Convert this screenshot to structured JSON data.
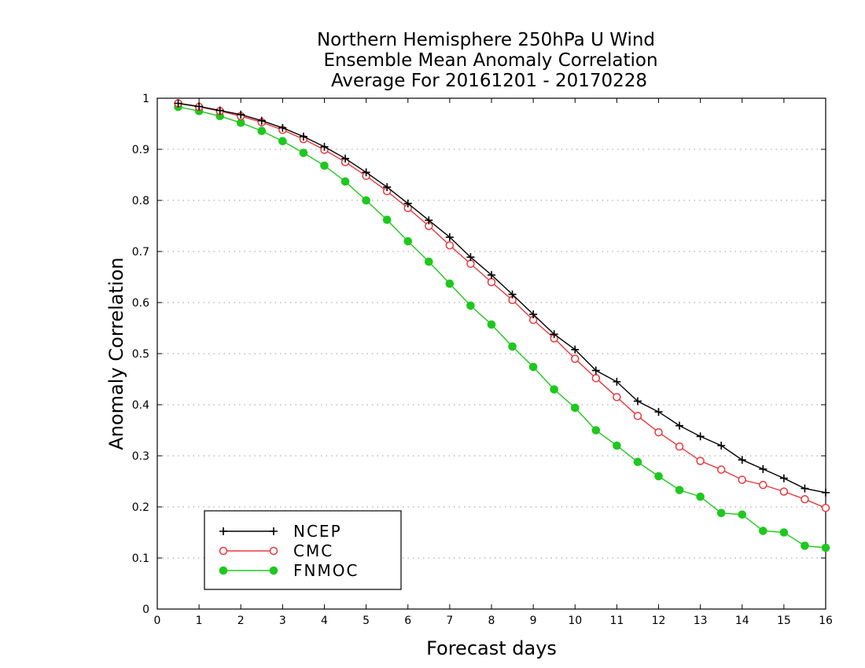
{
  "chart_data": {
    "type": "line",
    "title_lines": [
      "Northern Hemisphere 250hPa U Wind",
      "Ensemble Mean Anomaly Correlation",
      "Average For 20161201 - 20170228"
    ],
    "xlabel": "Forecast days",
    "ylabel": "Anomaly Correlation",
    "xlim": [
      0,
      16
    ],
    "ylim": [
      0,
      1
    ],
    "xticks": [
      0,
      1,
      2,
      3,
      4,
      5,
      6,
      7,
      8,
      9,
      10,
      11,
      12,
      13,
      14,
      15,
      16
    ],
    "xtick_labels": [
      "0",
      "1",
      "2",
      "3",
      "4",
      "5",
      "6",
      "7",
      "8",
      "9",
      "10",
      "11",
      "12",
      "13",
      "14",
      "15",
      "16"
    ],
    "yticks": [
      0,
      0.1,
      0.2,
      0.3,
      0.4,
      0.5,
      0.6,
      0.7,
      0.8,
      0.9,
      1
    ],
    "ytick_labels": [
      "0",
      "0.1",
      "0.2",
      "0.3",
      "0.4",
      "0.5",
      "0.6",
      "0.7",
      "0.8",
      "0.9",
      "1"
    ],
    "grid": "horizontal dotted",
    "legend_position": "bottom-left",
    "x": [
      0.5,
      1,
      1.5,
      2,
      2.5,
      3,
      3.5,
      4,
      4.5,
      5,
      5.5,
      6,
      6.5,
      7,
      7.5,
      8,
      8.5,
      9,
      9.5,
      10,
      10.5,
      11,
      11.5,
      12,
      12.5,
      13,
      13.5,
      14,
      14.5,
      15,
      15.5,
      16
    ],
    "series": [
      {
        "name": "NCEP",
        "color": "#000000",
        "marker": "plus",
        "values": [
          0.99,
          0.984,
          0.976,
          0.968,
          0.956,
          0.942,
          0.925,
          0.905,
          0.882,
          0.855,
          0.826,
          0.794,
          0.761,
          0.728,
          0.689,
          0.654,
          0.616,
          0.577,
          0.538,
          0.508,
          0.467,
          0.445,
          0.407,
          0.386,
          0.359,
          0.338,
          0.32,
          0.292,
          0.274,
          0.256,
          0.236,
          0.228
        ]
      },
      {
        "name": "CMC",
        "color": "#e8383c",
        "marker": "open-circle",
        "values": [
          0.99,
          0.983,
          0.975,
          0.965,
          0.953,
          0.938,
          0.92,
          0.899,
          0.875,
          0.848,
          0.818,
          0.785,
          0.75,
          0.712,
          0.676,
          0.64,
          0.605,
          0.566,
          0.53,
          0.49,
          0.452,
          0.415,
          0.378,
          0.346,
          0.318,
          0.29,
          0.273,
          0.253,
          0.243,
          0.23,
          0.215,
          0.198
        ]
      },
      {
        "name": "FNMOC",
        "color": "#1ec81e",
        "marker": "filled-circle",
        "values": [
          0.983,
          0.975,
          0.965,
          0.952,
          0.936,
          0.916,
          0.893,
          0.868,
          0.837,
          0.8,
          0.762,
          0.72,
          0.68,
          0.637,
          0.594,
          0.557,
          0.514,
          0.474,
          0.43,
          0.394,
          0.35,
          0.32,
          0.288,
          0.26,
          0.233,
          0.22,
          0.188,
          0.185,
          0.153,
          0.15,
          0.124,
          0.12
        ]
      }
    ]
  }
}
